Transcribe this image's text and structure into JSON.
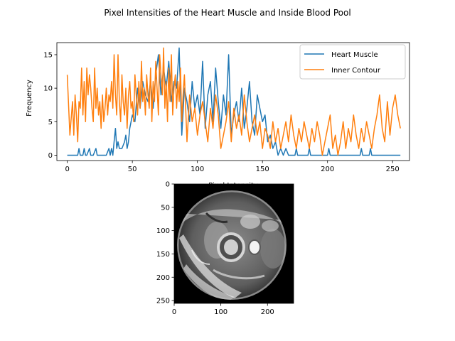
{
  "figure": {
    "suptitle": "Pixel Intensities of the Heart Muscle and Inside Blood Pool"
  },
  "chart_data": [
    {
      "type": "line",
      "title": "Pixel Intensities of the Heart Muscle and Inside Blood Pool",
      "xlabel": "Pixel Intensity",
      "ylabel": "Frequency",
      "xlim": [
        -8,
        263
      ],
      "ylim": [
        -0.8,
        16.8
      ],
      "xticks": [
        0,
        50,
        100,
        150,
        200,
        250
      ],
      "yticks": [
        0,
        5,
        10,
        15
      ],
      "grid": false,
      "legend": "top-right",
      "series": [
        {
          "name": "Heart Muscle",
          "color": "#1f77b4",
          "x": [
            0,
            5,
            8,
            9,
            10,
            12,
            13,
            14,
            15,
            17,
            18,
            20,
            22,
            23,
            25,
            30,
            32,
            33,
            34,
            35,
            36,
            37,
            38,
            39,
            40,
            42,
            44,
            45,
            46,
            47,
            48,
            50,
            52,
            54,
            56,
            58,
            60,
            62,
            64,
            66,
            68,
            70,
            72,
            74,
            76,
            78,
            80,
            82,
            84,
            86,
            88,
            90,
            92,
            94,
            96,
            98,
            100,
            102,
            104,
            106,
            108,
            110,
            112,
            114,
            116,
            118,
            120,
            122,
            124,
            126,
            128,
            130,
            132,
            134,
            136,
            138,
            140,
            142,
            144,
            146,
            148,
            150,
            152,
            154,
            156,
            158,
            160,
            162,
            164,
            166,
            168,
            170,
            175,
            176,
            177,
            185,
            186,
            187,
            200,
            201,
            202,
            225,
            226,
            227,
            232,
            233,
            234,
            256
          ],
          "y": [
            0,
            0,
            0,
            1,
            0,
            0,
            1,
            0,
            0,
            1,
            0,
            0,
            1,
            0,
            0,
            0,
            1,
            0,
            1,
            0,
            2,
            4,
            1,
            2,
            1,
            1,
            2,
            3,
            1,
            2,
            4,
            6,
            5,
            10,
            7,
            11,
            9,
            8,
            11,
            7,
            12,
            15,
            9,
            13,
            10,
            14,
            8,
            11,
            10,
            16,
            3,
            10,
            8,
            5,
            11,
            7,
            9,
            6,
            14,
            4,
            9,
            11,
            5,
            13,
            8,
            4,
            9,
            6,
            15,
            3,
            6,
            8,
            5,
            10,
            4,
            7,
            11,
            5,
            3,
            9,
            7,
            5,
            6,
            2,
            3,
            1,
            2,
            0,
            1,
            0,
            1,
            0,
            0,
            1,
            0,
            0,
            1,
            0,
            0,
            1,
            0,
            0,
            1,
            0,
            0,
            1,
            0,
            0
          ]
        },
        {
          "name": "Inner Contour",
          "color": "#ff7f0e",
          "x": [
            0,
            2,
            4,
            5,
            6,
            7,
            8,
            9,
            10,
            11,
            12,
            13,
            14,
            15,
            16,
            17,
            18,
            19,
            20,
            21,
            22,
            23,
            24,
            25,
            26,
            27,
            28,
            29,
            30,
            31,
            32,
            33,
            34,
            35,
            36,
            37,
            38,
            39,
            40,
            41,
            42,
            43,
            44,
            45,
            46,
            47,
            48,
            49,
            50,
            51,
            52,
            53,
            54,
            55,
            56,
            57,
            58,
            59,
            60,
            61,
            62,
            63,
            64,
            65,
            66,
            67,
            68,
            69,
            70,
            71,
            72,
            73,
            74,
            75,
            76,
            77,
            78,
            79,
            80,
            81,
            82,
            83,
            84,
            85,
            86,
            87,
            88,
            89,
            90,
            92,
            94,
            96,
            98,
            100,
            102,
            104,
            106,
            108,
            110,
            112,
            114,
            116,
            118,
            120,
            122,
            124,
            126,
            128,
            130,
            132,
            134,
            136,
            138,
            140,
            142,
            144,
            146,
            148,
            150,
            152,
            154,
            156,
            158,
            160,
            162,
            164,
            166,
            168,
            170,
            172,
            174,
            176,
            178,
            180,
            182,
            184,
            186,
            188,
            190,
            192,
            194,
            196,
            198,
            200,
            202,
            204,
            206,
            208,
            210,
            212,
            214,
            216,
            218,
            220,
            222,
            224,
            226,
            228,
            230,
            232,
            234,
            236,
            238,
            240,
            242,
            244,
            246,
            248,
            250,
            252,
            254,
            256
          ],
          "y": [
            12,
            3,
            8,
            3,
            9,
            6,
            2,
            8,
            7,
            13,
            6,
            11,
            5,
            13,
            9,
            12,
            10,
            7,
            5,
            13,
            7,
            10,
            6,
            8,
            4,
            9,
            5,
            7,
            10,
            6,
            9,
            8,
            11,
            7,
            15,
            9,
            6,
            15,
            8,
            5,
            12,
            8,
            6,
            10,
            4,
            9,
            11,
            7,
            8,
            5,
            12,
            9,
            6,
            11,
            7,
            14,
            8,
            10,
            6,
            12,
            9,
            7,
            13,
            5,
            11,
            8,
            14,
            10,
            6,
            15,
            12,
            9,
            16,
            7,
            11,
            5,
            13,
            8,
            15,
            6,
            10,
            12,
            7,
            11,
            8,
            13,
            5,
            9,
            12,
            2,
            9,
            5,
            7,
            3,
            6,
            8,
            5,
            2,
            7,
            4,
            9,
            6,
            1,
            3,
            5,
            8,
            2,
            7,
            4,
            6,
            3,
            9,
            5,
            2,
            4,
            6,
            3,
            5,
            1,
            4,
            3,
            1,
            5,
            2,
            4,
            1,
            3,
            5,
            2,
            6,
            3,
            1,
            4,
            2,
            5,
            3,
            1,
            4,
            2,
            5,
            3,
            0,
            2,
            4,
            6,
            1,
            3,
            0,
            2,
            5,
            1,
            4,
            2,
            6,
            3,
            1,
            4,
            2,
            5,
            3,
            1,
            4,
            6,
            9,
            4,
            2,
            8,
            3,
            7,
            9,
            6,
            4
          ]
        }
      ]
    },
    {
      "type": "image",
      "title": "",
      "xlabel": "",
      "ylabel": "",
      "xlim": [
        0,
        256
      ],
      "ylim": [
        256,
        0
      ],
      "xticks": [
        0,
        100,
        200
      ],
      "yticks": [
        0,
        50,
        100,
        150,
        200,
        250
      ],
      "colormap": "gray"
    }
  ]
}
